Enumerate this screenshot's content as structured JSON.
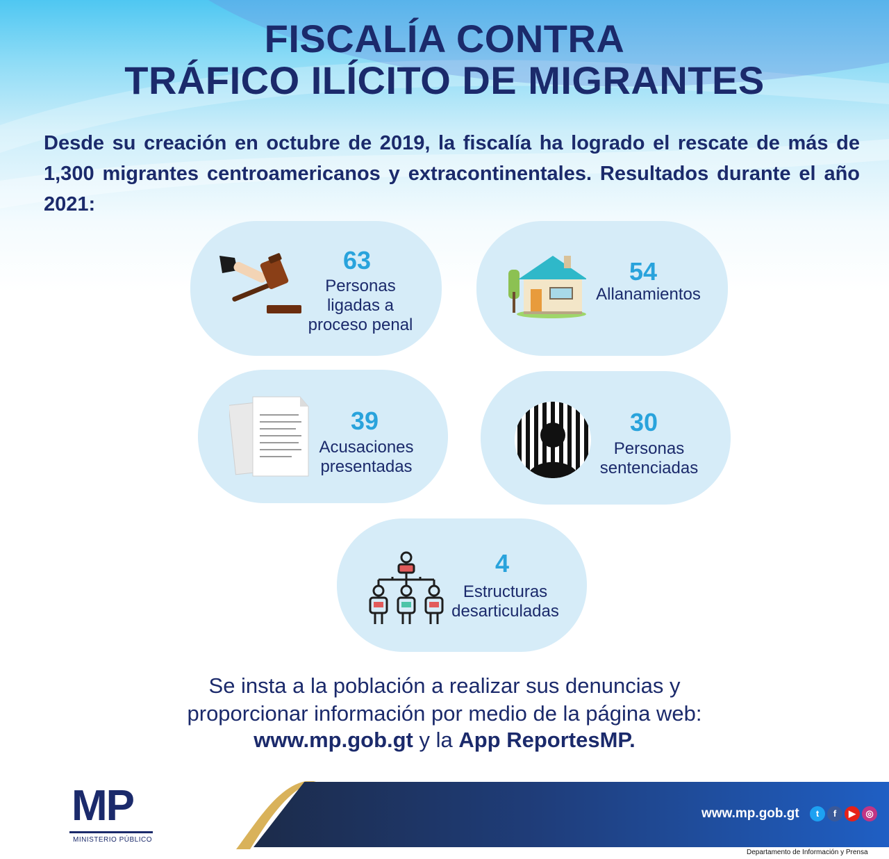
{
  "header": {
    "title_line1": "FISCALÍA CONTRA",
    "title_line2": "TRÁFICO ILÍCITO DE MIGRANTES"
  },
  "intro": "Desde su creación en octubre de 2019, la fiscalía ha logrado el rescate de más de 1,300 migrantes centroamericanos y extracontinentales. Resultados durante el año 2021:",
  "stats": [
    {
      "number": "63",
      "label": "Personas\nligadas a\nproceso penal",
      "icon": "gavel-icon"
    },
    {
      "number": "54",
      "label": "Allanamientos",
      "icon": "house-icon"
    },
    {
      "number": "39",
      "label": "Acusaciones\npresentadas",
      "icon": "documents-icon"
    },
    {
      "number": "30",
      "label": "Personas\nsentenciadas",
      "icon": "prisoner-icon"
    },
    {
      "number": "4",
      "label": "Estructuras\ndesarticuladas",
      "icon": "org-structure-icon"
    }
  ],
  "footer": {
    "line1": "Se insta a la población a realizar sus denuncias y",
    "line2": "proporcionar información por medio de la página web:",
    "url": "www.mp.gob.gt",
    "connector": " y la ",
    "app": "App ReportesMP."
  },
  "bar": {
    "url": "www.mp.gob.gt",
    "department": "Departamento de Información y Prensa"
  },
  "logo": {
    "letters": "MP",
    "subtitle": "MINISTERIO PÚBLICO"
  },
  "colors": {
    "navy": "#1b2a6b",
    "accent_blue": "#29a3dc",
    "card_bg": "#d6ecf8"
  }
}
